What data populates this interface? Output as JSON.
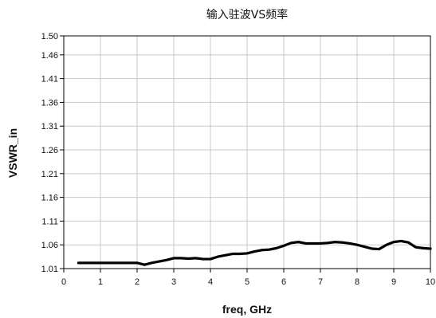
{
  "chart_data": {
    "type": "line",
    "title": "输入驻波VS频率",
    "xlabel": "freq, GHz",
    "ylabel": "VSWR_in",
    "xlim": [
      0,
      10
    ],
    "ylim": [
      1.01,
      1.5
    ],
    "grid": true,
    "legend": "none",
    "line_color": "#000000",
    "x_ticks": [
      0,
      1,
      2,
      3,
      4,
      5,
      6,
      7,
      8,
      9,
      10
    ],
    "x_tick_labels": [
      "0",
      "1",
      "2",
      "3",
      "4",
      "5",
      "6",
      "7",
      "8",
      "9",
      "10"
    ],
    "y_ticks": [
      1.01,
      1.06,
      1.11,
      1.16,
      1.21,
      1.26,
      1.31,
      1.36,
      1.41,
      1.46,
      1.5
    ],
    "y_tick_labels": [
      "1.01",
      "1.06",
      "1.11",
      "1.16",
      "1.21",
      "1.26",
      "1.31",
      "1.36",
      "1.41",
      "1.46",
      "1.50"
    ],
    "series": [
      {
        "x": [
          0.4,
          0.8,
          1.2,
          1.6,
          2.0,
          2.2,
          2.4,
          2.6,
          2.8,
          3.0,
          3.2,
          3.4,
          3.6,
          3.8,
          4.0,
          4.2,
          4.4,
          4.6,
          4.8,
          5.0,
          5.2,
          5.4,
          5.6,
          5.8,
          6.0,
          6.2,
          6.4,
          6.6,
          6.8,
          7.0,
          7.2,
          7.4,
          7.6,
          7.8,
          8.0,
          8.2,
          8.4,
          8.6,
          8.8,
          9.0,
          9.2,
          9.4,
          9.6,
          9.8,
          10.0
        ],
        "y": [
          1.022,
          1.022,
          1.022,
          1.022,
          1.022,
          1.018,
          1.022,
          1.025,
          1.028,
          1.032,
          1.032,
          1.031,
          1.032,
          1.03,
          1.03,
          1.035,
          1.038,
          1.041,
          1.041,
          1.042,
          1.046,
          1.049,
          1.05,
          1.053,
          1.058,
          1.064,
          1.066,
          1.063,
          1.063,
          1.063,
          1.064,
          1.066,
          1.065,
          1.063,
          1.06,
          1.056,
          1.052,
          1.051,
          1.06,
          1.066,
          1.068,
          1.065,
          1.055,
          1.053,
          1.052
        ]
      }
    ]
  }
}
